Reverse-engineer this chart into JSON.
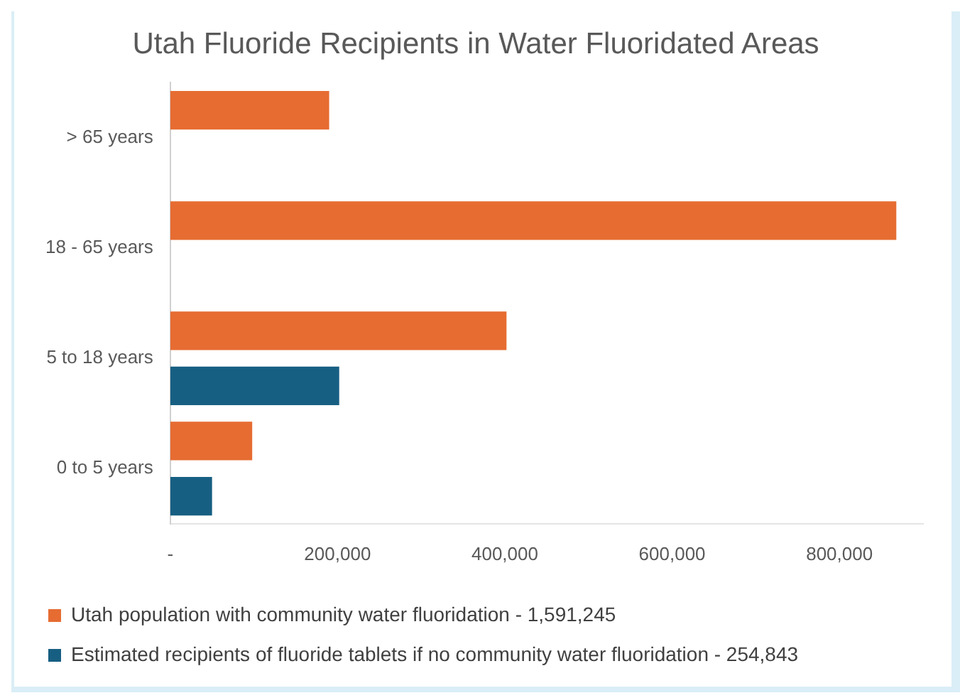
{
  "chart_data": {
    "type": "bar",
    "orientation": "horizontal",
    "title": "Utah Fluoride Recipients in Water Fluoridated Areas",
    "categories": [
      "> 65 years",
      "18 - 65 years",
      "5 to 18 years",
      "0 to 5 years"
    ],
    "series": [
      {
        "name": "Utah population with community water fluoridation - 1,591,245",
        "color": "#e66c32",
        "values": [
          190000,
          868000,
          402000,
          98000
        ]
      },
      {
        "name": "Estimated recipients of fluoride tablets if no community water fluoridation - 254,843",
        "color": "#175f82",
        "values": [
          null,
          null,
          202000,
          50000
        ]
      }
    ],
    "xlim": [
      0,
      900000
    ],
    "xticks": [
      {
        "value": 0,
        "label": "-"
      },
      {
        "value": 200000,
        "label": "200,000"
      },
      {
        "value": 400000,
        "label": "400,000"
      },
      {
        "value": 600000,
        "label": "600,000"
      },
      {
        "value": 800000,
        "label": "800,000"
      }
    ],
    "grid": false,
    "legend": "bottom"
  }
}
